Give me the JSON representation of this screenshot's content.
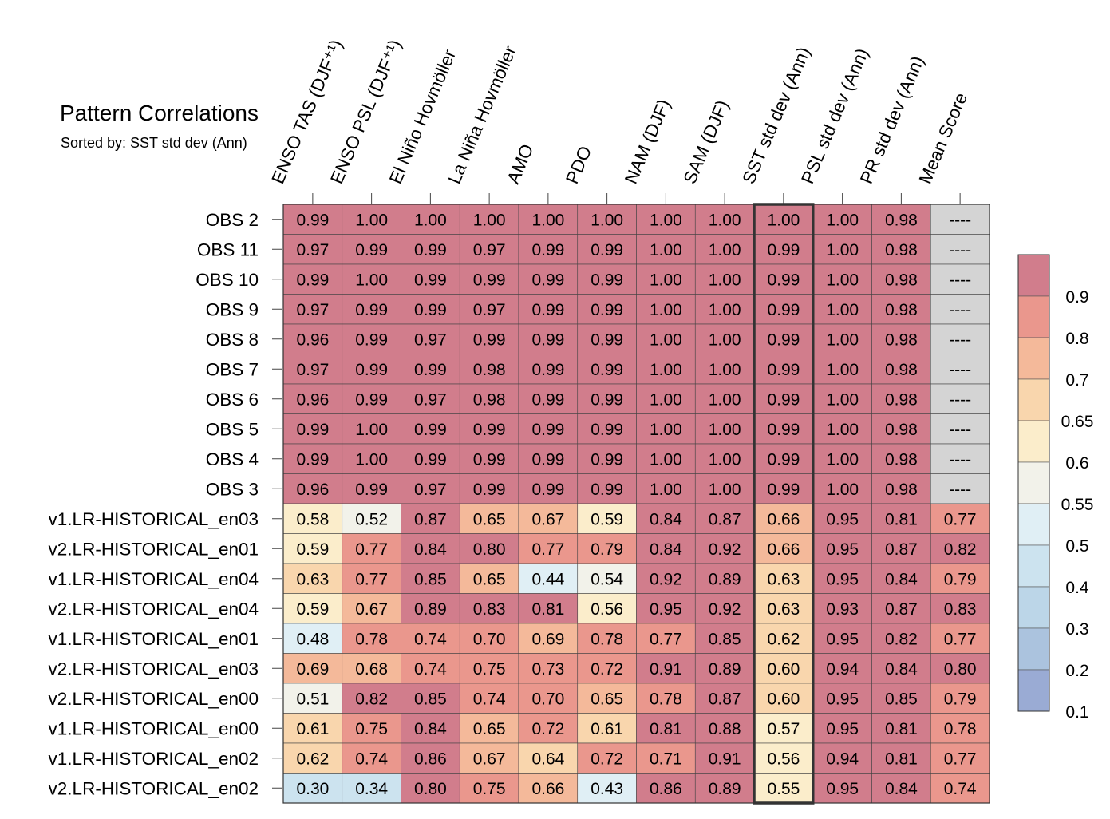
{
  "title": "Pattern Correlations",
  "subtitle": "Sorted by: SST std dev (Ann)",
  "chart_data": {
    "type": "heatmap",
    "columns": [
      "ENSO TAS (DJF⁺¹)",
      "ENSO PSL (DJF⁺¹)",
      "El Niño Hovmöller",
      "La Niña Hovmöller",
      "AMO",
      "PDO",
      "NAM (DJF)",
      "SAM (DJF)",
      "SST std dev (Ann)",
      "PSL std dev (Ann)",
      "PR std dev (Ann)",
      "Mean Score"
    ],
    "rows": [
      "OBS 2",
      "OBS 11",
      "OBS 10",
      "OBS 9",
      "OBS 8",
      "OBS 7",
      "OBS 6",
      "OBS 5",
      "OBS 4",
      "OBS 3",
      "v1.LR-HISTORICAL_en03",
      "v2.LR-HISTORICAL_en01",
      "v1.LR-HISTORICAL_en04",
      "v2.LR-HISTORICAL_en04",
      "v1.LR-HISTORICAL_en01",
      "v2.LR-HISTORICAL_en03",
      "v2.LR-HISTORICAL_en00",
      "v1.LR-HISTORICAL_en00",
      "v1.LR-HISTORICAL_en02",
      "v2.LR-HISTORICAL_en02"
    ],
    "values": [
      [
        "0.99",
        "1.00",
        "1.00",
        "1.00",
        "1.00",
        "1.00",
        "1.00",
        "1.00",
        "1.00",
        "1.00",
        "0.98",
        "----"
      ],
      [
        "0.97",
        "0.99",
        "0.99",
        "0.97",
        "0.99",
        "0.99",
        "1.00",
        "1.00",
        "0.99",
        "1.00",
        "0.98",
        "----"
      ],
      [
        "0.99",
        "1.00",
        "0.99",
        "0.99",
        "0.99",
        "0.99",
        "1.00",
        "1.00",
        "0.99",
        "1.00",
        "0.98",
        "----"
      ],
      [
        "0.97",
        "0.99",
        "0.99",
        "0.97",
        "0.99",
        "0.99",
        "1.00",
        "1.00",
        "0.99",
        "1.00",
        "0.98",
        "----"
      ],
      [
        "0.96",
        "0.99",
        "0.97",
        "0.99",
        "0.99",
        "0.99",
        "1.00",
        "1.00",
        "0.99",
        "1.00",
        "0.98",
        "----"
      ],
      [
        "0.97",
        "0.99",
        "0.99",
        "0.98",
        "0.99",
        "0.99",
        "1.00",
        "1.00",
        "0.99",
        "1.00",
        "0.98",
        "----"
      ],
      [
        "0.96",
        "0.99",
        "0.97",
        "0.98",
        "0.99",
        "0.99",
        "1.00",
        "1.00",
        "0.99",
        "1.00",
        "0.98",
        "----"
      ],
      [
        "0.99",
        "1.00",
        "0.99",
        "0.99",
        "0.99",
        "0.99",
        "1.00",
        "1.00",
        "0.99",
        "1.00",
        "0.98",
        "----"
      ],
      [
        "0.99",
        "1.00",
        "0.99",
        "0.99",
        "0.99",
        "0.99",
        "1.00",
        "1.00",
        "0.99",
        "1.00",
        "0.98",
        "----"
      ],
      [
        "0.96",
        "0.99",
        "0.97",
        "0.99",
        "0.99",
        "0.99",
        "1.00",
        "1.00",
        "0.99",
        "1.00",
        "0.98",
        "----"
      ],
      [
        "0.58",
        "0.52",
        "0.87",
        "0.65",
        "0.67",
        "0.59",
        "0.84",
        "0.87",
        "0.66",
        "0.95",
        "0.81",
        "0.77"
      ],
      [
        "0.59",
        "0.77",
        "0.84",
        "0.80",
        "0.77",
        "0.79",
        "0.84",
        "0.92",
        "0.66",
        "0.95",
        "0.87",
        "0.82"
      ],
      [
        "0.63",
        "0.77",
        "0.85",
        "0.65",
        "0.44",
        "0.54",
        "0.92",
        "0.89",
        "0.63",
        "0.95",
        "0.84",
        "0.79"
      ],
      [
        "0.59",
        "0.67",
        "0.89",
        "0.83",
        "0.81",
        "0.56",
        "0.95",
        "0.92",
        "0.63",
        "0.93",
        "0.87",
        "0.83"
      ],
      [
        "0.48",
        "0.78",
        "0.74",
        "0.70",
        "0.69",
        "0.78",
        "0.77",
        "0.85",
        "0.62",
        "0.95",
        "0.82",
        "0.77"
      ],
      [
        "0.69",
        "0.68",
        "0.74",
        "0.75",
        "0.73",
        "0.72",
        "0.91",
        "0.89",
        "0.60",
        "0.94",
        "0.84",
        "0.80"
      ],
      [
        "0.51",
        "0.82",
        "0.85",
        "0.74",
        "0.70",
        "0.65",
        "0.78",
        "0.87",
        "0.60",
        "0.95",
        "0.85",
        "0.79"
      ],
      [
        "0.61",
        "0.75",
        "0.84",
        "0.65",
        "0.72",
        "0.61",
        "0.81",
        "0.88",
        "0.57",
        "0.95",
        "0.81",
        "0.78"
      ],
      [
        "0.62",
        "0.74",
        "0.86",
        "0.67",
        "0.64",
        "0.72",
        "0.71",
        "0.91",
        "0.56",
        "0.94",
        "0.81",
        "0.77"
      ],
      [
        "0.30",
        "0.34",
        "0.80",
        "0.75",
        "0.66",
        "0.43",
        "0.86",
        "0.89",
        "0.55",
        "0.95",
        "0.84",
        "0.74"
      ]
    ],
    "highlight_column": "SST std dev (Ann)",
    "missing_color": "#d4d4d4",
    "colorbar": {
      "tick_labels": [
        "0.9",
        "0.8",
        "0.7",
        "0.65",
        "0.6",
        "0.55",
        "0.5",
        "0.4",
        "0.3",
        "0.2",
        "0.1"
      ],
      "thresholds": [
        0.1,
        0.2,
        0.3,
        0.4,
        0.5,
        0.55,
        0.6,
        0.65,
        0.7,
        0.8,
        0.9
      ],
      "colors": [
        "#9aabd4",
        "#abc3de",
        "#bcd6e8",
        "#cce3ef",
        "#e0eff5",
        "#f2f2ea",
        "#fbedcb",
        "#f9d6ad",
        "#f4b99a",
        "#ea978d",
        "#d17d8c"
      ]
    },
    "legend": "right",
    "grid": true
  }
}
